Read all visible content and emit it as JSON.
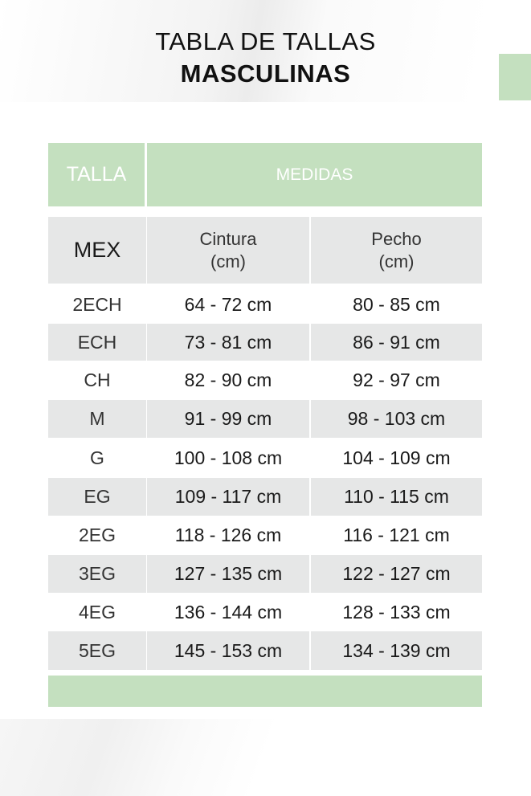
{
  "title": {
    "line1": "TABLA DE TALLAS",
    "line2": "MASCULINAS"
  },
  "header": {
    "talla": "TALLA",
    "medidas": "MEDIDAS"
  },
  "subheader": {
    "mex": "MEX",
    "cintura": "Cintura",
    "cintura_unit": "(cm)",
    "pecho": "Pecho",
    "pecho_unit": "(cm)"
  },
  "rows": [
    {
      "size": "2ECH",
      "cintura": "64 - 72 cm",
      "pecho": "80 - 85 cm"
    },
    {
      "size": "ECH",
      "cintura": "73 - 81 cm",
      "pecho": "86 - 91 cm"
    },
    {
      "size": "CH",
      "cintura": "82 - 90 cm",
      "pecho": "92 - 97 cm"
    },
    {
      "size": "M",
      "cintura": "91 - 99 cm",
      "pecho": "98 - 103 cm"
    },
    {
      "size": "G",
      "cintura": "100 - 108 cm",
      "pecho": "104 - 109 cm"
    },
    {
      "size": "EG",
      "cintura": "109 - 117 cm",
      "pecho": "110 - 115 cm"
    },
    {
      "size": "2EG",
      "cintura": "118 - 126 cm",
      "pecho": "116 - 121 cm"
    },
    {
      "size": "3EG",
      "cintura": "127 - 135 cm",
      "pecho": "122 - 127 cm"
    },
    {
      "size": "4EG",
      "cintura": "136 - 144 cm",
      "pecho": "128 - 133 cm"
    },
    {
      "size": "5EG",
      "cintura": "145 - 153 cm",
      "pecho": "134 - 139 cm"
    }
  ],
  "colors": {
    "accent_green": "#c4e0bf",
    "row_gray": "#e6e7e7"
  }
}
